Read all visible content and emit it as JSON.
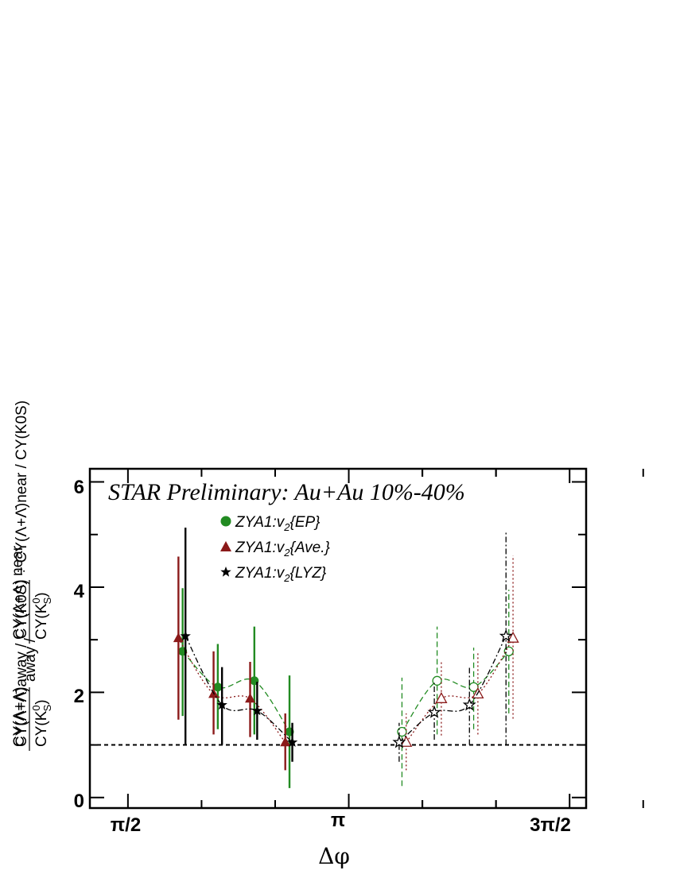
{
  "chart_data": {
    "type": "scatter",
    "title": "STAR Preliminary: Au+Au 10%-40%",
    "xlabel": "Δφ",
    "ylabel": "CY(Λ+Λ̄)away / CY(K0S) ÷ CY(Λ+Λ̄)near / CY(K0S)",
    "xlim": [
      1.3,
      4.83
    ],
    "ylim": [
      -0.2,
      6.25
    ],
    "x_tick_labels": [
      "π/2",
      "π",
      "3π/2"
    ],
    "y_tick_labels": [
      "0",
      "2",
      "4",
      "6"
    ],
    "reference_line": 1,
    "legend_position": "top-left",
    "series": [
      {
        "name": "ZYA1:v2{EP}",
        "color": "#228b22",
        "marker": "circle",
        "linestyle": "dashed",
        "points": [
          {
            "x": 1.96,
            "y": 2.78,
            "lo": 1.55,
            "hi": 3.98,
            "open": false
          },
          {
            "x": 2.21,
            "y": 2.1,
            "lo": 1.3,
            "hi": 2.92,
            "open": false
          },
          {
            "x": 2.47,
            "y": 2.22,
            "lo": 1.2,
            "hi": 3.25,
            "open": false
          },
          {
            "x": 2.72,
            "y": 1.25,
            "lo": 0.18,
            "hi": 2.32,
            "open": false
          },
          {
            "x": 3.52,
            "y": 1.25,
            "lo": 0.22,
            "hi": 2.28,
            "open": true
          },
          {
            "x": 3.77,
            "y": 2.22,
            "lo": 1.2,
            "hi": 3.25,
            "open": true
          },
          {
            "x": 4.03,
            "y": 2.1,
            "lo": 1.3,
            "hi": 2.85,
            "open": true
          },
          {
            "x": 4.28,
            "y": 2.78,
            "lo": 1.6,
            "hi": 3.95,
            "open": true
          }
        ]
      },
      {
        "name": "ZYA1:v2{Ave.}",
        "color": "#8b1a1a",
        "marker": "triangle",
        "linestyle": "dotted",
        "points": [
          {
            "x": 1.93,
            "y": 3.03,
            "lo": 1.48,
            "hi": 4.58,
            "open": false
          },
          {
            "x": 2.18,
            "y": 1.97,
            "lo": 1.2,
            "hi": 2.78,
            "open": false
          },
          {
            "x": 2.44,
            "y": 1.88,
            "lo": 1.15,
            "hi": 2.58,
            "open": false
          },
          {
            "x": 2.69,
            "y": 1.05,
            "lo": 0.52,
            "hi": 1.6,
            "open": false
          },
          {
            "x": 3.55,
            "y": 1.05,
            "lo": 0.52,
            "hi": 1.6,
            "open": true
          },
          {
            "x": 3.8,
            "y": 1.88,
            "lo": 1.18,
            "hi": 2.6,
            "open": true
          },
          {
            "x": 4.06,
            "y": 1.97,
            "lo": 1.2,
            "hi": 2.75,
            "open": true
          },
          {
            "x": 4.31,
            "y": 3.03,
            "lo": 1.5,
            "hi": 4.6,
            "open": true
          }
        ]
      },
      {
        "name": "ZYA1:v2{LYZ}",
        "color": "#000000",
        "marker": "star",
        "linestyle": "dashdot",
        "points": [
          {
            "x": 1.98,
            "y": 3.07,
            "lo": 1.0,
            "hi": 5.13,
            "open": false
          },
          {
            "x": 2.24,
            "y": 1.76,
            "lo": 1.0,
            "hi": 2.48,
            "open": false
          },
          {
            "x": 2.49,
            "y": 1.65,
            "lo": 1.1,
            "hi": 2.2,
            "open": false
          },
          {
            "x": 2.74,
            "y": 1.05,
            "lo": 0.68,
            "hi": 1.42,
            "open": false
          },
          {
            "x": 3.5,
            "y": 1.05,
            "lo": 0.68,
            "hi": 1.42,
            "open": true
          },
          {
            "x": 3.75,
            "y": 1.62,
            "lo": 1.1,
            "hi": 2.18,
            "open": true
          },
          {
            "x": 4.0,
            "y": 1.76,
            "lo": 1.0,
            "hi": 2.5,
            "open": true
          },
          {
            "x": 4.26,
            "y": 3.07,
            "lo": 1.0,
            "hi": 5.05,
            "open": true
          }
        ]
      }
    ]
  }
}
